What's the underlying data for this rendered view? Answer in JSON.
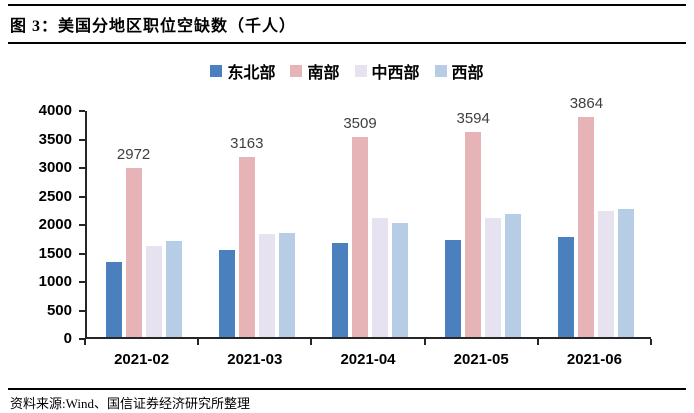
{
  "header": {
    "title": "图 3：美国分地区职位空缺数（千人）"
  },
  "footer": {
    "source": "资料来源:Wind、国信证券经济研究所整理"
  },
  "colors": {
    "northeast": "#4A80BE",
    "south": "#E6B4B6",
    "midwest": "#E6E2EF",
    "west": "#B7CDE5",
    "axis": "#262626",
    "data_label": "#404040"
  },
  "chart_data": {
    "type": "bar",
    "title": "美国分地区职位空缺数（千人）",
    "categories": [
      "2021-02",
      "2021-03",
      "2021-04",
      "2021-05",
      "2021-06"
    ],
    "series": [
      {
        "name": "东北部",
        "color": "#4A80BE",
        "labeled": false,
        "values": [
          1310,
          1520,
          1650,
          1700,
          1760
        ]
      },
      {
        "name": "南部",
        "color": "#E6B4B6",
        "labeled": true,
        "values": [
          2972,
          3163,
          3509,
          3594,
          3864
        ]
      },
      {
        "name": "中西部",
        "color": "#E6E2EF",
        "labeled": false,
        "values": [
          1600,
          1800,
          2090,
          2080,
          2210
        ]
      },
      {
        "name": "西部",
        "color": "#B7CDE5",
        "labeled": false,
        "values": [
          1680,
          1820,
          2000,
          2150,
          2250
        ]
      }
    ],
    "data_labels": [
      "2972",
      "3163",
      "3509",
      "3594",
      "3864"
    ],
    "xlabel": "",
    "ylabel": "",
    "ylim": [
      0,
      4000
    ],
    "y_ticks": [
      0,
      500,
      1000,
      1500,
      2000,
      2500,
      3000,
      3500,
      4000
    ],
    "grid": false,
    "legend_position": "top"
  }
}
